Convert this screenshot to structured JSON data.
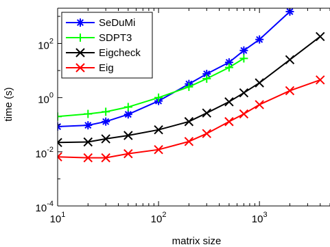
{
  "chart_data": {
    "type": "line",
    "xlabel": "matrix size",
    "ylabel": "time (s)",
    "xscale": "log",
    "yscale": "log",
    "xlim": [
      10,
      5000
    ],
    "ylim": [
      0.0001,
      2000
    ],
    "grid": false,
    "legend_position": "top-left",
    "x_ticks": [
      {
        "value": 10,
        "base": "10",
        "exp": "1"
      },
      {
        "value": 100,
        "base": "10",
        "exp": "2"
      },
      {
        "value": 1000,
        "base": "10",
        "exp": "3"
      }
    ],
    "y_ticks": [
      {
        "value": 0.0001,
        "base": "10",
        "exp": "-4"
      },
      {
        "value": 0.01,
        "base": "10",
        "exp": "-2"
      },
      {
        "value": 1,
        "base": "10",
        "exp": "0"
      },
      {
        "value": 100,
        "base": "10",
        "exp": "2"
      }
    ],
    "series": [
      {
        "name": "SeDuMi",
        "color": "#0000ff",
        "marker": "asterisk",
        "x": [
          10,
          20,
          30,
          50,
          100,
          200,
          300,
          500,
          700,
          1000,
          2000
        ],
        "y": [
          0.085,
          0.095,
          0.13,
          0.24,
          0.75,
          3.2,
          7.5,
          20,
          55,
          140,
          1500
        ]
      },
      {
        "name": "SDPT3",
        "color": "#00ff00",
        "marker": "plus",
        "x": [
          10,
          20,
          30,
          50,
          100,
          200,
          300,
          500,
          700
        ],
        "y": [
          0.2,
          0.25,
          0.3,
          0.45,
          1.0,
          2.5,
          5.0,
          13,
          28
        ]
      },
      {
        "name": "Eigcheck",
        "color": "#000000",
        "marker": "x",
        "x": [
          10,
          20,
          30,
          50,
          100,
          200,
          300,
          500,
          700,
          1000,
          2000,
          4000
        ],
        "y": [
          0.022,
          0.023,
          0.03,
          0.04,
          0.065,
          0.13,
          0.27,
          0.7,
          1.5,
          3.5,
          25,
          180
        ]
      },
      {
        "name": "Eig",
        "color": "#ff0000",
        "marker": "x",
        "x": [
          10,
          20,
          30,
          50,
          100,
          200,
          300,
          500,
          700,
          1000,
          2000,
          4000
        ],
        "y": [
          0.0065,
          0.006,
          0.006,
          0.0085,
          0.012,
          0.024,
          0.047,
          0.13,
          0.25,
          0.55,
          1.8,
          4.5
        ]
      }
    ]
  }
}
